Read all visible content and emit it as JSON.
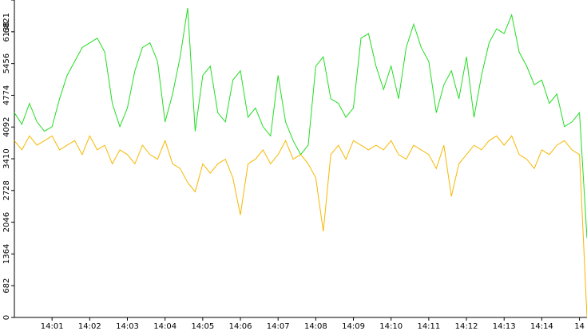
{
  "chart_data": {
    "type": "line",
    "x": [
      0,
      0.2,
      0.4,
      0.6,
      0.8,
      1,
      1.2,
      1.4,
      1.6,
      1.8,
      2,
      2.2,
      2.4,
      2.6,
      2.8,
      3,
      3.2,
      3.4,
      3.6,
      3.8,
      4,
      4.2,
      4.4,
      4.6,
      4.8,
      5,
      5.2,
      5.4,
      5.6,
      5.8,
      6,
      6.2,
      6.4,
      6.6,
      6.8,
      7,
      7.2,
      7.4,
      7.6,
      7.8,
      8,
      8.2,
      8.4,
      8.6,
      8.8,
      9,
      9.2,
      9.4,
      9.6,
      9.8,
      10,
      10.2,
      10.4,
      10.6,
      10.8,
      11,
      11.2,
      11.4,
      11.6,
      11.8,
      12,
      12.2,
      12.4,
      12.6,
      12.8,
      13,
      13.2,
      13.4,
      13.6,
      13.8,
      14,
      14.2,
      14.4,
      14.6,
      14.8,
      15,
      15.2
    ],
    "series": [
      {
        "color": "#22dd22",
        "values": [
          4400,
          4150,
          4600,
          4200,
          4000,
          4100,
          4700,
          5200,
          5500,
          5800,
          5900,
          6000,
          5700,
          4600,
          4100,
          4500,
          5300,
          5800,
          5900,
          5500,
          4200,
          4800,
          5600,
          6650,
          4000,
          5200,
          5400,
          4400,
          4200,
          5100,
          5300,
          4300,
          4500,
          4100,
          3900,
          5200,
          4200,
          3800,
          3500,
          3700,
          5400,
          5600,
          4700,
          4600,
          4300,
          4500,
          6000,
          6100,
          5400,
          4900,
          5400,
          4700,
          5800,
          6300,
          5800,
          5500,
          4400,
          5000,
          5300,
          4700,
          5600,
          4300,
          5200,
          5900,
          6200,
          6100,
          6500,
          5700,
          5400,
          5000,
          5100,
          4600,
          4800,
          4100,
          4200,
          4400,
          1700
        ]
      },
      {
        "color": "#f5b800",
        "values": [
          3800,
          3600,
          3900,
          3700,
          3800,
          3900,
          3600,
          3700,
          3800,
          3500,
          3900,
          3600,
          3700,
          3300,
          3600,
          3500,
          3300,
          3700,
          3500,
          3400,
          3800,
          3300,
          3200,
          2900,
          2700,
          3300,
          3100,
          3300,
          3400,
          3000,
          2200,
          3300,
          3400,
          3600,
          3300,
          3500,
          3800,
          3400,
          3500,
          3300,
          3000,
          1850,
          3500,
          3700,
          3400,
          3800,
          3700,
          3600,
          3700,
          3600,
          3800,
          3500,
          3400,
          3700,
          3600,
          3500,
          3200,
          3700,
          2600,
          3300,
          3500,
          3700,
          3600,
          3800,
          3900,
          3700,
          3900,
          3500,
          3400,
          3200,
          3600,
          3500,
          3700,
          3800,
          3600,
          3500,
          0
        ]
      }
    ],
    "xlim": [
      0,
      15.2
    ],
    "xticks": [
      {
        "value": 1,
        "label": "14:01"
      },
      {
        "value": 2,
        "label": "14:02"
      },
      {
        "value": 3,
        "label": "14:03"
      },
      {
        "value": 4,
        "label": "14:04"
      },
      {
        "value": 5,
        "label": "14:05"
      },
      {
        "value": 6,
        "label": "14:06"
      },
      {
        "value": 7,
        "label": "14:07"
      },
      {
        "value": 8,
        "label": "14:08"
      },
      {
        "value": 9,
        "label": "14:09"
      },
      {
        "value": 10,
        "label": "14:10"
      },
      {
        "value": 11,
        "label": "14:11"
      },
      {
        "value": 12,
        "label": "14:12"
      },
      {
        "value": 13,
        "label": "14:13"
      },
      {
        "value": 14,
        "label": "14:14"
      },
      {
        "value": 15,
        "label": "14"
      }
    ],
    "ylim": [
      0,
      6821
    ],
    "yticks": [
      0,
      682,
      1364,
      2046,
      2728,
      3410,
      4092,
      4774,
      5456,
      6138,
      6821
    ]
  }
}
